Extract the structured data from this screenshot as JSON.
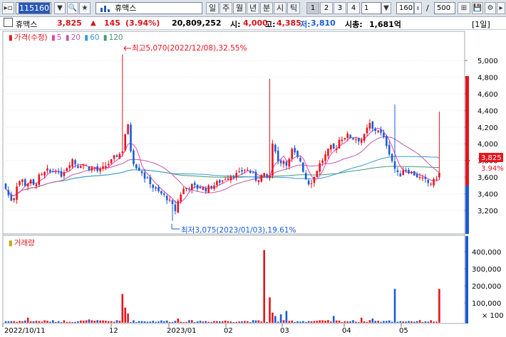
{
  "toolbar": {
    "code": "115160",
    "name": "휴맥스",
    "periods": [
      "일",
      "주",
      "월",
      "년",
      "분",
      "시",
      "틱"
    ],
    "numbers": [
      "1",
      "2",
      "3",
      "4"
    ],
    "interval_value": "1",
    "count_value": "160",
    "slash": "/",
    "total_value": "500"
  },
  "info": {
    "name": "휴맥스",
    "price": "3,825",
    "change_arrow": "▲",
    "change": "145",
    "change_pct": "(3.94%)",
    "volume": "20,809,252",
    "open_label": "시:",
    "open": "4,000",
    "high_label": "고:",
    "high": "4,385",
    "low_label": "저:",
    "low": "3,810",
    "cap_label": "시총:",
    "cap": "1,681억",
    "period_badge": "[1일]"
  },
  "legend": {
    "price": "가격(수정)",
    "ma5": "5",
    "ma20": "20",
    "ma60": "60",
    "ma120": "120"
  },
  "volume_legend": "거래량",
  "annotations": {
    "max": "최고5,070(2022/12/08),32.55%",
    "min": "최저3,075(2023/01/03),19.61%"
  },
  "colors": {
    "up": "#e8141c",
    "down": "#1a5bd6",
    "ma5": "#e63fb8",
    "ma20": "#c05aa8",
    "ma60": "#3a9ad0",
    "ma120": "#3f9b70"
  },
  "chart_data": {
    "type": "candlestick",
    "y_ticks": [
      "5,000",
      "4,800",
      "4,600",
      "4,400",
      "4,200",
      "4,000",
      "3,800",
      "3,600",
      "3,400",
      "3,200"
    ],
    "current_price": "3,825",
    "current_pct": "3.94%",
    "volume_ticks": [
      "400,000",
      "300,000",
      "200,000",
      "100,000"
    ],
    "volume_unit": "× 100",
    "x_ticks": [
      "2022/10/11",
      "12",
      "2023/01",
      "02",
      "03",
      "04",
      "05"
    ],
    "ylim": [
      3050,
      5120
    ]
  }
}
